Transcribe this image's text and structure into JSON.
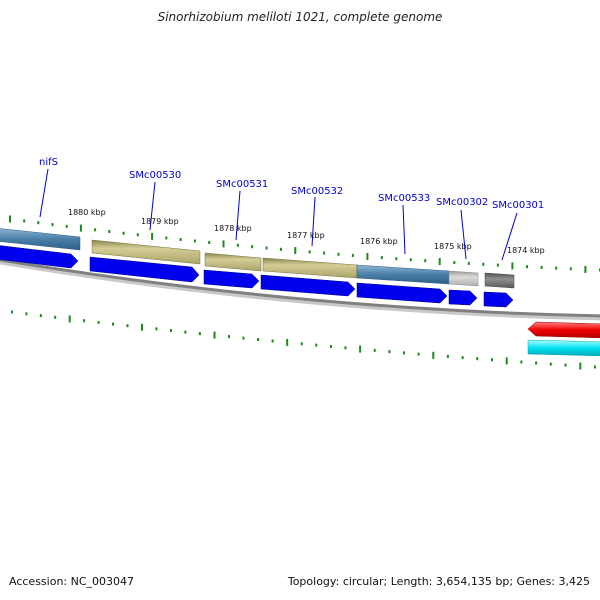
{
  "title": "Sinorhizobium meliloti 1021, complete genome",
  "accession": "Accession: NC_003047",
  "summary": "Topology: circular; Length: 3,654,135 bp; Genes: 3,425",
  "colors": {
    "cds_arrow": "#0000ee",
    "tick": "#1a8a1a",
    "backbone": "#808080",
    "label_line": "#0000cc",
    "reverse_feature": "#ee0000",
    "reverse_feature_2": "#00e0f0"
  },
  "scale_labels": [
    "1880 kbp",
    "1879 kbp",
    "1878 kbp",
    "1877 kbp",
    "1876 kbp",
    "1875 kbp",
    "1874 kbp"
  ],
  "genes": [
    {
      "label": "nifS",
      "category_color": "#4a7fa8"
    },
    {
      "label": "SMc00530",
      "category_color": "#b4ac6c"
    },
    {
      "label": "SMc00531",
      "category_color": "#b4ac6c"
    },
    {
      "label": "SMc00532",
      "category_color": "#b4ac6c"
    },
    {
      "label": "SMc00533",
      "category_color": "#4a7fa8"
    },
    {
      "label": "SMc00302",
      "category_color": "#b8b8b8"
    },
    {
      "label": "SMc00301",
      "category_color": "#6a6a6a"
    }
  ]
}
